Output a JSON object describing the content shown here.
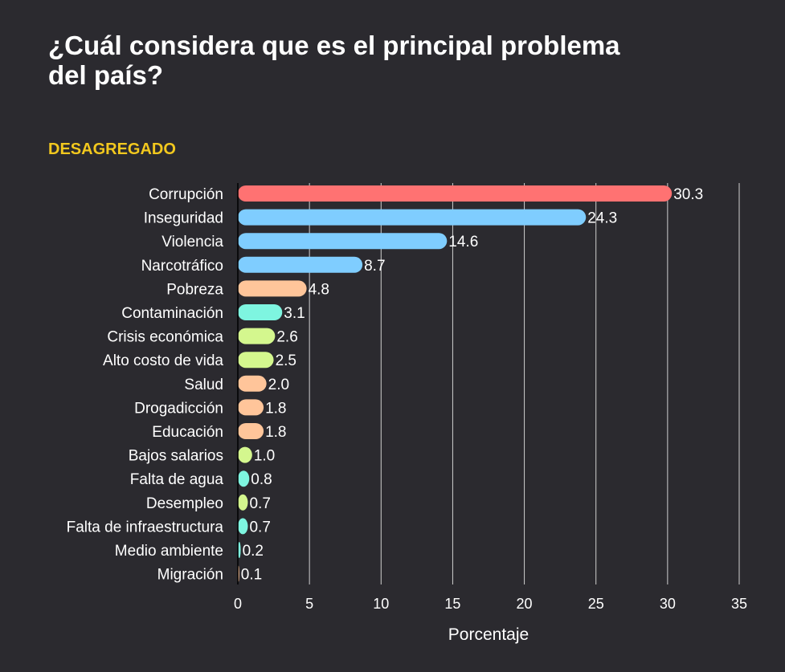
{
  "chart_data": {
    "type": "bar",
    "orientation": "horizontal",
    "title": "¿Cuál considera que es el principal problema del país?",
    "title_lines": [
      "¿Cuál considera que es el principal problema",
      "del país?"
    ],
    "subtitle": "DESAGREGADO",
    "xlabel": "Porcentaje",
    "ylabel": "",
    "xlim": [
      0,
      35
    ],
    "xticks": [
      0,
      5,
      10,
      15,
      20,
      25,
      30,
      35
    ],
    "grid": "vertical",
    "categories": [
      "Corrupción",
      "Inseguridad",
      "Violencia",
      "Narcotráfico",
      "Pobreza",
      "Contaminación",
      "Crisis económica",
      "Alto costo de vida",
      "Salud",
      "Drogadicción",
      "Educación",
      "Bajos salarios",
      "Falta de agua",
      "Desempleo",
      "Falta de infraestructura",
      "Medio ambiente",
      "Migración"
    ],
    "values": [
      30.3,
      24.3,
      14.6,
      8.7,
      4.8,
      3.1,
      2.6,
      2.5,
      2.0,
      1.8,
      1.8,
      1.0,
      0.8,
      0.7,
      0.7,
      0.2,
      0.1
    ],
    "value_labels": [
      "30.3",
      "24.3",
      "14.6",
      "8.7",
      "4.8",
      "3.1",
      "2.6",
      "2.5",
      "2.0",
      "1.8",
      "1.8",
      "1.0",
      "0.8",
      "0.7",
      "0.7",
      "0.2",
      "0.1"
    ],
    "bar_colors": [
      "#ff7272",
      "#7fcdff",
      "#7fcdff",
      "#7fcdff",
      "#ffc59a",
      "#7ef5e0",
      "#d4f78e",
      "#d4f78e",
      "#ffc59a",
      "#ffc59a",
      "#ffc59a",
      "#d4f78e",
      "#7ef5e0",
      "#d4f78e",
      "#7ef5e0",
      "#7ef5e0",
      "#ffc59a"
    ]
  },
  "colors": {
    "background": "#2b2a2f",
    "subtitle": "#f2c81e",
    "text": "#ffffff"
  }
}
